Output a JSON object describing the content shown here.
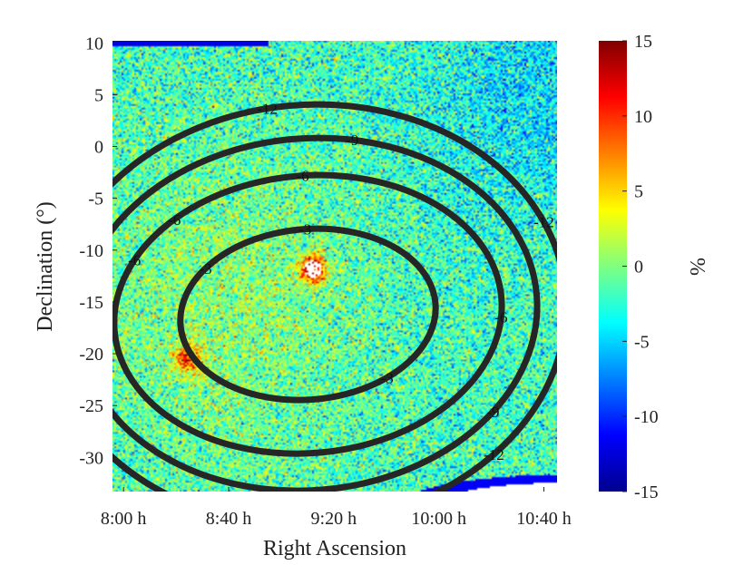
{
  "chart_data": {
    "type": "heatmap",
    "title": "",
    "xlabel": "Right Ascension",
    "ylabel": "Declination (°)",
    "xticks": [
      "8:00 h",
      "8:40 h",
      "9:20 h",
      "10:00 h",
      "10:40 h"
    ],
    "xtick_values_hours": [
      8.0,
      8.6667,
      9.3333,
      10.0,
      10.6667
    ],
    "xlim_hours": [
      7.93,
      10.75
    ],
    "yticks": [
      "10",
      "5",
      "0",
      "-5",
      "-10",
      "-15",
      "-20",
      "-25",
      "-30"
    ],
    "ytick_values": [
      10,
      5,
      0,
      -5,
      -10,
      -15,
      -20,
      -25,
      -30
    ],
    "ylim": [
      -33.3,
      10.2
    ],
    "colorbar": {
      "label": "%",
      "range": [
        -15,
        15
      ],
      "ticks": [
        "15",
        "10",
        "5",
        "0",
        "-5",
        "-10",
        "-15"
      ],
      "tick_values": [
        15,
        10,
        5,
        0,
        -5,
        -10,
        -15
      ],
      "colormap": "jet"
    },
    "background_mean_percent": -2,
    "hotspots": [
      {
        "ra_hours": 9.2,
        "dec": -11.8,
        "value_percent": 15
      },
      {
        "ra_hours": 8.4,
        "dec": -20.5,
        "value_percent": 10
      }
    ],
    "contours": {
      "center_ra_hours": 9.17,
      "center_dec": -16.2,
      "levels": [
        -3,
        -6,
        -9,
        -12
      ],
      "level_labels": [
        "-3",
        "-6",
        "-9",
        "-12"
      ],
      "color": "#262626"
    }
  }
}
